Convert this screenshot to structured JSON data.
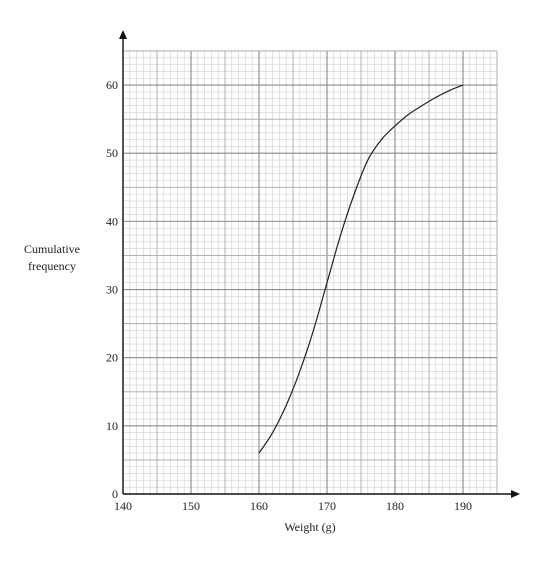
{
  "chart_data": {
    "type": "line",
    "xlabel": "Weight (g)",
    "ylabel_lines": [
      "Cumulative",
      "frequency"
    ],
    "xlim": [
      140,
      195
    ],
    "ylim": [
      0,
      65
    ],
    "x_ticks": [
      140,
      150,
      160,
      170,
      180,
      190
    ],
    "y_ticks": [
      0,
      10,
      20,
      30,
      40,
      50,
      60
    ],
    "grid": true,
    "series": [
      {
        "x": [
          160,
          162,
          164,
          166,
          168,
          170,
          172,
          174,
          176,
          178,
          180,
          182,
          184,
          186,
          188,
          190
        ],
        "y": [
          6,
          9,
          13,
          18,
          24,
          31,
          38,
          44,
          49,
          52,
          54,
          55.7,
          57,
          58.2,
          59.2,
          60
        ]
      }
    ]
  }
}
